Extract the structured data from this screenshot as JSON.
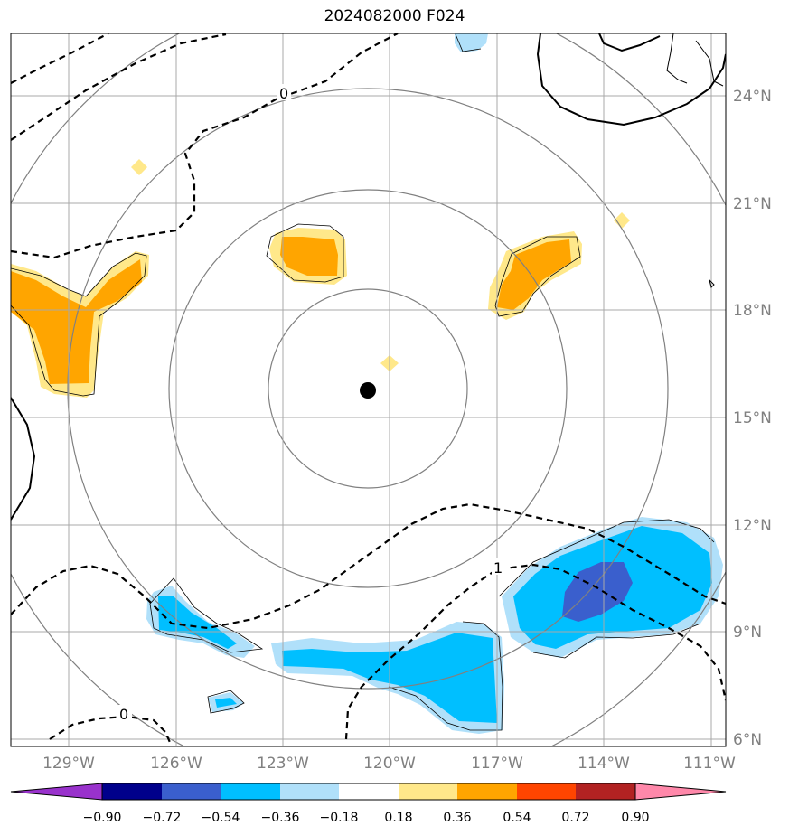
{
  "title": "2024082000 F024",
  "map": {
    "lat_labels": [
      "24°N",
      "21°N",
      "18°N",
      "15°N",
      "12°N",
      "9°N",
      "6°N"
    ],
    "lon_labels": [
      "129°W",
      "126°W",
      "123°W",
      "120°W",
      "117°W",
      "114°W",
      "111°W"
    ],
    "contour_labels": [
      "0",
      "1",
      "0"
    ],
    "center_marker": {
      "lon": -120.6,
      "lat": 15.7
    },
    "fill_colors": {
      "light_yellow": "#ffe88a",
      "orange": "#ffa500",
      "light_blue": "#b0e0fa",
      "cyan": "#00bfff",
      "royal_blue": "#3a5fcd"
    }
  },
  "colorbar": {
    "ticks": [
      "−0.90",
      "−0.72",
      "−0.54",
      "−0.36",
      "−0.18",
      "0.18",
      "0.36",
      "0.54",
      "0.72",
      "0.90"
    ],
    "colors": [
      "#9932cc",
      "#00008b",
      "#3a5fcd",
      "#00bfff",
      "#b0e0fa",
      "#ffffff",
      "#ffe88a",
      "#ffa500",
      "#ff4500",
      "#b22222",
      "#ff88aa"
    ]
  }
}
